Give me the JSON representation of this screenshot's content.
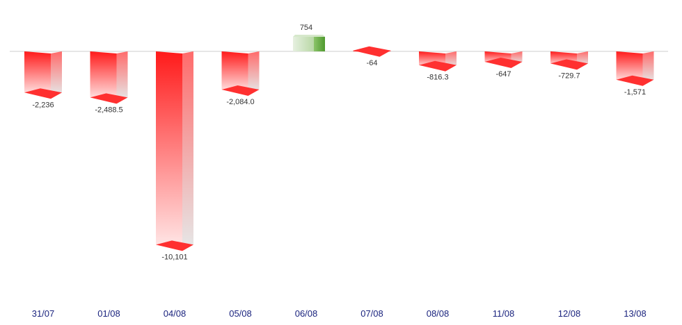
{
  "chart_data": {
    "type": "bar",
    "title": "",
    "xlabel": "",
    "ylabel": "",
    "categories": [
      "31/07",
      "01/08",
      "04/08",
      "05/08",
      "06/08",
      "07/08",
      "08/08",
      "11/08",
      "12/08",
      "13/08"
    ],
    "series": [
      {
        "values": [
          -2236,
          -2488.5,
          -10101,
          -2084.0,
          754,
          -64,
          -816.3,
          -647,
          -729.7,
          -1571
        ],
        "labels": [
          "-2,236",
          "-2,488.5",
          "-10,101",
          "-2,084.0",
          "754",
          "-64",
          "-816.3",
          "-647",
          "-729.7",
          "-1,571"
        ]
      }
    ],
    "ylim": [
      -10101,
      754
    ],
    "grid": false,
    "legend": "none",
    "colors": {
      "negative": "#ff1a1a",
      "negative_fade": "#e6e6e6",
      "positive": "#5fa83a",
      "positive_fade": "#e6f0e0",
      "baseline": "#cccccc",
      "axis_label": "#1a237e"
    }
  }
}
